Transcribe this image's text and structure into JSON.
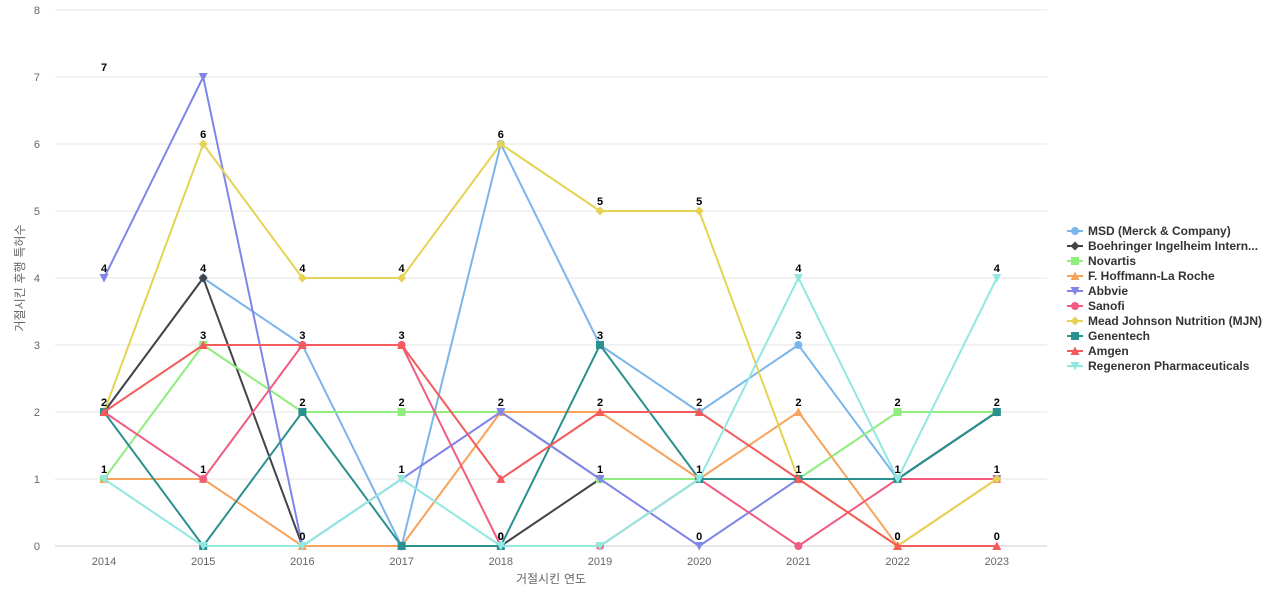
{
  "chart_data": {
    "type": "line",
    "xlabel": "거절시킨 연도",
    "ylabel": "거절시킨 후행 특허수",
    "ylim": [
      0,
      8
    ],
    "yticks": [
      0,
      1,
      2,
      3,
      4,
      5,
      6,
      7,
      8
    ],
    "grid": true,
    "legend_position": "right",
    "categories": [
      "2014",
      "2015",
      "2016",
      "2017",
      "2018",
      "2019",
      "2020",
      "2021",
      "2022",
      "2023"
    ],
    "series": [
      {
        "name": "MSD (Merck & Company)",
        "color": "#7cb5ec",
        "marker": "circle",
        "values": [
          2,
          4,
          3,
          0,
          6,
          3,
          2,
          3,
          1,
          2
        ]
      },
      {
        "name": "Boehringer Ingelheim Intern...",
        "color": "#434348",
        "marker": "diamond",
        "values": [
          2,
          4,
          0,
          0,
          0,
          1,
          1,
          1,
          1,
          2
        ]
      },
      {
        "name": "Novartis",
        "color": "#90ed7d",
        "marker": "square",
        "values": [
          1,
          3,
          2,
          2,
          2,
          1,
          1,
          1,
          2,
          2
        ]
      },
      {
        "name": "F. Hoffmann-La Roche",
        "color": "#f7a35c",
        "marker": "triangle",
        "values": [
          1,
          1,
          0,
          0,
          2,
          2,
          1,
          2,
          0,
          1
        ]
      },
      {
        "name": "Abbvie",
        "color": "#8085e9",
        "marker": "triangle-down",
        "values": [
          4,
          7,
          0,
          1,
          2,
          1,
          0,
          1,
          1,
          1
        ]
      },
      {
        "name": "Sanofi",
        "color": "#f15c80",
        "marker": "circle",
        "values": [
          2,
          1,
          3,
          3,
          0,
          0,
          1,
          0,
          1,
          1
        ]
      },
      {
        "name": "Mead Johnson Nutrition (MJN)",
        "color": "#e4d354",
        "marker": "diamond",
        "values": [
          2,
          6,
          4,
          4,
          6,
          5,
          5,
          1,
          0,
          1
        ]
      },
      {
        "name": "Genentech",
        "color": "#2b908f",
        "marker": "square",
        "values": [
          2,
          0,
          2,
          0,
          0,
          3,
          1,
          1,
          1,
          2
        ]
      },
      {
        "name": "Amgen",
        "color": "#f45b5b",
        "marker": "triangle",
        "values": [
          2,
          3,
          3,
          3,
          1,
          2,
          2,
          1,
          0,
          0
        ]
      },
      {
        "name": "Regeneron Pharmaceuticals",
        "color": "#91e8e1",
        "marker": "triangle-down",
        "values": [
          1,
          0,
          0,
          1,
          0,
          0,
          1,
          4,
          1,
          4
        ]
      }
    ],
    "data_labels": [
      [
        7,
        6,
        4,
        4,
        6,
        5,
        5,
        4,
        2,
        4
      ],
      [
        4,
        4,
        3,
        3,
        2,
        3,
        2,
        3,
        1,
        2
      ],
      [
        2,
        3,
        2,
        2,
        0,
        2,
        1,
        2,
        0,
        1
      ],
      [
        1,
        1,
        0,
        1,
        0,
        1,
        0,
        1,
        0,
        0
      ]
    ]
  }
}
